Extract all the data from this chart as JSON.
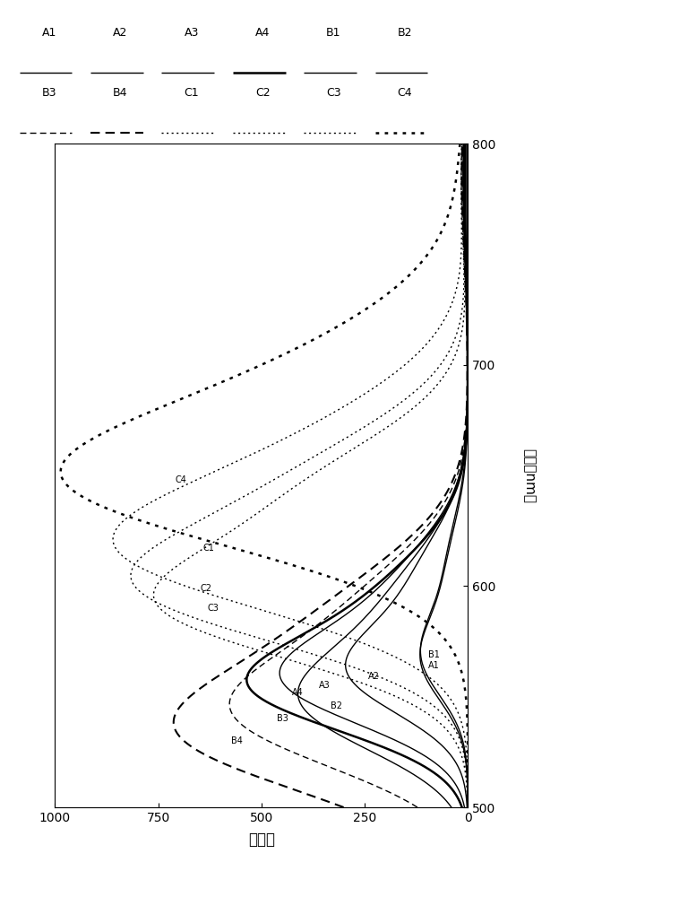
{
  "xlabel_bottom": "吸光度",
  "ylabel_right": "波长（nm）",
  "xlim": [
    0,
    1000
  ],
  "ylim": [
    500,
    800
  ],
  "xticks": [
    0,
    250,
    500,
    750,
    1000
  ],
  "yticks": [
    500,
    600,
    700,
    800
  ],
  "series_params": [
    [
      "A1",
      565,
      95,
      18,
      602,
      52,
      26,
      1.0,
      "solid",
      false
    ],
    [
      "A2",
      560,
      240,
      19,
      597,
      130,
      27,
      1.0,
      "solid",
      false
    ],
    [
      "A3",
      556,
      360,
      20,
      591,
      190,
      28,
      1.0,
      "solid",
      false
    ],
    [
      "A4",
      553,
      420,
      20,
      587,
      220,
      28,
      1.8,
      "solid",
      false
    ],
    [
      "B1",
      567,
      95,
      18,
      605,
      52,
      26,
      1.0,
      "solid",
      false
    ],
    [
      "B2",
      546,
      330,
      22,
      587,
      185,
      30,
      1.0,
      "solid",
      false
    ],
    [
      "B3",
      540,
      460,
      24,
      583,
      268,
      31,
      1.0,
      "dashed",
      false
    ],
    [
      "B4",
      531,
      570,
      26,
      578,
      340,
      33,
      1.5,
      "dashed",
      false
    ],
    [
      "C1",
      613,
      640,
      27,
      653,
      385,
      34,
      1.0,
      "dotted",
      false
    ],
    [
      "C2",
      597,
      645,
      25,
      641,
      400,
      31,
      1.0,
      "dotted",
      false
    ],
    [
      "C3",
      589,
      625,
      24,
      636,
      395,
      30,
      1.0,
      "dotted",
      false
    ],
    [
      "C4",
      643,
      710,
      29,
      683,
      440,
      37,
      1.8,
      "dotted",
      false
    ]
  ],
  "curve_labels": [
    [
      "A1",
      96,
      564
    ],
    [
      "B1",
      96,
      569
    ],
    [
      "A3",
      362,
      555
    ],
    [
      "A2",
      242,
      559
    ],
    [
      "A4",
      425,
      552
    ],
    [
      "B2",
      332,
      546
    ],
    [
      "B3",
      462,
      540
    ],
    [
      "B4",
      573,
      530
    ],
    [
      "C1",
      642,
      617
    ],
    [
      "C2",
      648,
      599
    ],
    [
      "C3",
      630,
      590
    ],
    [
      "C4",
      710,
      648
    ]
  ],
  "legend_items": [
    [
      "A1",
      "solid",
      1.0
    ],
    [
      "A2",
      "solid",
      1.0
    ],
    [
      "A3",
      "solid",
      1.0
    ],
    [
      "A4",
      "solid",
      1.8
    ],
    [
      "B1",
      "solid",
      1.0
    ],
    [
      "B2",
      "solid",
      1.0
    ],
    [
      "B3",
      "dashed",
      1.0
    ],
    [
      "B4",
      "dashed",
      1.5
    ],
    [
      "C1",
      "dotted",
      1.0
    ],
    [
      "C2",
      "dotted",
      1.0
    ],
    [
      "C3",
      "dotted",
      1.0
    ],
    [
      "C4",
      "dotted",
      1.8
    ]
  ]
}
